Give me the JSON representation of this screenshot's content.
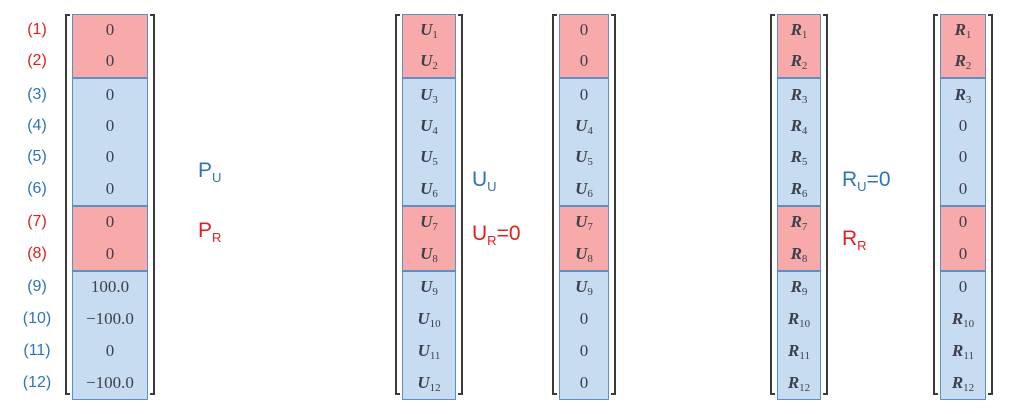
{
  "row_labels": [
    "(1)",
    "(2)",
    "(3)",
    "(4)",
    "(5)",
    "(6)",
    "(7)",
    "(8)",
    "(9)",
    "(10)",
    "(11)",
    "(12)"
  ],
  "row_label_colors": [
    "red",
    "red",
    "blue",
    "blue",
    "blue",
    "blue",
    "red",
    "red",
    "blue",
    "blue",
    "blue",
    "blue"
  ],
  "colors": {
    "red_fill": "#f7aaa9",
    "blue_fill": "#c7dcf0",
    "border": "#5b8fc7",
    "label_blue": "#2e75b6",
    "label_red": "#e02020"
  },
  "vectors": [
    {
      "id": "load-vector",
      "italic": false,
      "cells": [
        "0",
        "0",
        "0",
        "0",
        "0",
        "0",
        "0",
        "0",
        "100.0",
        "−100.0",
        "0",
        "−100.0"
      ]
    },
    {
      "id": "displacement-vector",
      "italic": true,
      "cells": [
        [
          "U",
          "1"
        ],
        [
          "U",
          "2"
        ],
        [
          "U",
          "3"
        ],
        [
          "U",
          "4"
        ],
        [
          "U",
          "5"
        ],
        [
          "U",
          "6"
        ],
        [
          "U",
          "7"
        ],
        [
          "U",
          "8"
        ],
        [
          "U",
          "9"
        ],
        [
          "U",
          "10"
        ],
        [
          "U",
          "11"
        ],
        [
          "U",
          "12"
        ]
      ]
    },
    {
      "id": "displacement-applied-vector",
      "italic": true,
      "cells": [
        "0",
        "0",
        "0",
        [
          "U",
          "4"
        ],
        [
          "U",
          "5"
        ],
        [
          "U",
          "6"
        ],
        [
          "U",
          "7"
        ],
        [
          "U",
          "8"
        ],
        [
          "U",
          "9"
        ],
        "0",
        "0",
        "0"
      ]
    },
    {
      "id": "reaction-vector",
      "italic": true,
      "cells": [
        [
          "R",
          "1"
        ],
        [
          "R",
          "2"
        ],
        [
          "R",
          "3"
        ],
        [
          "R",
          "4"
        ],
        [
          "R",
          "5"
        ],
        [
          "R",
          "6"
        ],
        [
          "R",
          "7"
        ],
        [
          "R",
          "8"
        ],
        [
          "R",
          "9"
        ],
        [
          "R",
          "10"
        ],
        [
          "R",
          "11"
        ],
        [
          "R",
          "12"
        ]
      ]
    },
    {
      "id": "reaction-applied-vector",
      "italic": true,
      "cells": [
        [
          "R",
          "1"
        ],
        [
          "R",
          "2"
        ],
        [
          "R",
          "3"
        ],
        "0",
        "0",
        "0",
        "0",
        "0",
        "0",
        [
          "R",
          "10"
        ],
        [
          "R",
          "11"
        ],
        [
          "R",
          "12"
        ]
      ]
    }
  ],
  "annotations": {
    "p_u": {
      "base": "P",
      "sub": "U",
      "rest": ""
    },
    "p_r": {
      "base": "P",
      "sub": "R",
      "rest": ""
    },
    "u_u": {
      "base": "U",
      "sub": "U",
      "rest": ""
    },
    "u_r": {
      "base": "U",
      "sub": "R",
      "rest": "=0"
    },
    "r_u": {
      "base": "R",
      "sub": "U",
      "rest": "=0"
    },
    "r_r": {
      "base": "R",
      "sub": "R",
      "rest": ""
    }
  }
}
